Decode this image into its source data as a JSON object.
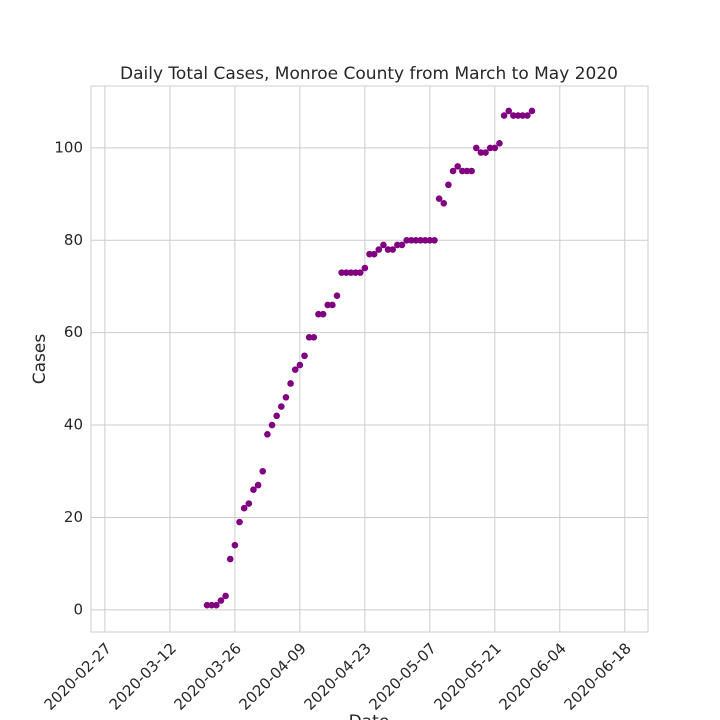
{
  "chart_data": {
    "type": "scatter",
    "title": "Daily Total Cases, Monroe County from March to May 2020",
    "xlabel": "Date",
    "ylabel": "Cases",
    "grid": true,
    "series": [
      {
        "color": "#800080",
        "x": [
          "2020-03-20",
          "2020-03-21",
          "2020-03-22",
          "2020-03-23",
          "2020-03-24",
          "2020-03-25",
          "2020-03-26",
          "2020-03-27",
          "2020-03-28",
          "2020-03-29",
          "2020-03-30",
          "2020-03-31",
          "2020-04-01",
          "2020-04-02",
          "2020-04-03",
          "2020-04-04",
          "2020-04-05",
          "2020-04-06",
          "2020-04-07",
          "2020-04-08",
          "2020-04-09",
          "2020-04-10",
          "2020-04-11",
          "2020-04-12",
          "2020-04-13",
          "2020-04-14",
          "2020-04-15",
          "2020-04-16",
          "2020-04-17",
          "2020-04-18",
          "2020-04-19",
          "2020-04-20",
          "2020-04-21",
          "2020-04-22",
          "2020-04-23",
          "2020-04-24",
          "2020-04-25",
          "2020-04-26",
          "2020-04-27",
          "2020-04-28",
          "2020-04-29",
          "2020-04-30",
          "2020-05-01",
          "2020-05-02",
          "2020-05-03",
          "2020-05-04",
          "2020-05-05",
          "2020-05-06",
          "2020-05-07",
          "2020-05-08",
          "2020-05-09",
          "2020-05-10",
          "2020-05-11",
          "2020-05-12",
          "2020-05-13",
          "2020-05-14",
          "2020-05-15",
          "2020-05-16",
          "2020-05-17",
          "2020-05-18",
          "2020-05-19",
          "2020-05-20",
          "2020-05-21",
          "2020-05-22",
          "2020-05-23",
          "2020-05-24",
          "2020-05-25",
          "2020-05-26",
          "2020-05-27",
          "2020-05-28",
          "2020-05-29"
        ],
        "values": [
          1,
          1,
          1,
          2,
          3,
          11,
          14,
          19,
          22,
          23,
          26,
          27,
          30,
          38,
          40,
          42,
          44,
          46,
          49,
          52,
          53,
          55,
          59,
          59,
          64,
          64,
          66,
          66,
          68,
          73,
          73,
          73,
          73,
          73,
          74,
          77,
          77,
          78,
          79,
          78,
          78,
          79,
          79,
          80,
          80,
          80,
          80,
          80,
          80,
          80,
          89,
          88,
          92,
          95,
          96,
          95,
          95,
          95,
          100,
          99,
          99,
          100,
          100,
          101,
          107,
          108,
          107,
          107,
          107,
          107,
          108
        ]
      }
    ],
    "xlim": [
      "2020-02-24",
      "2020-06-23"
    ],
    "xticks": [
      "2020-02-27",
      "2020-03-12",
      "2020-03-26",
      "2020-04-09",
      "2020-04-23",
      "2020-05-07",
      "2020-05-21",
      "2020-06-04",
      "2020-06-18"
    ],
    "ylim": [
      -4.8,
      113.4
    ],
    "yticks": [
      0,
      20,
      40,
      60,
      80,
      100
    ]
  }
}
